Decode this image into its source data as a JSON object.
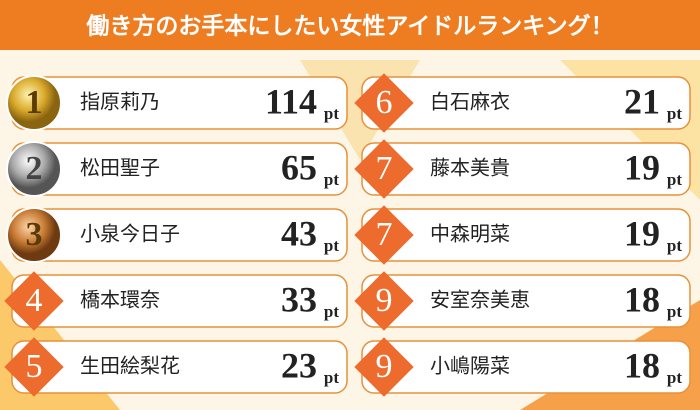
{
  "title": "働き方のお手本にしたい女性アイドルランキング！",
  "unit": "pt",
  "rankings": [
    {
      "rank": 1,
      "name": "指原莉乃",
      "points": 114
    },
    {
      "rank": 2,
      "name": "松田聖子",
      "points": 65
    },
    {
      "rank": 3,
      "name": "小泉今日子",
      "points": 43
    },
    {
      "rank": 4,
      "name": "橋本環奈",
      "points": 33
    },
    {
      "rank": 5,
      "name": "生田絵梨花",
      "points": 23
    },
    {
      "rank": 6,
      "name": "白石麻衣",
      "points": 21
    },
    {
      "rank": 7,
      "name": "藤本美貴",
      "points": 19
    },
    {
      "rank": 7,
      "name": "中森明菜",
      "points": 19
    },
    {
      "rank": 9,
      "name": "安室奈美恵",
      "points": 18
    },
    {
      "rank": 9,
      "name": "小嶋陽菜",
      "points": 18
    }
  ]
}
